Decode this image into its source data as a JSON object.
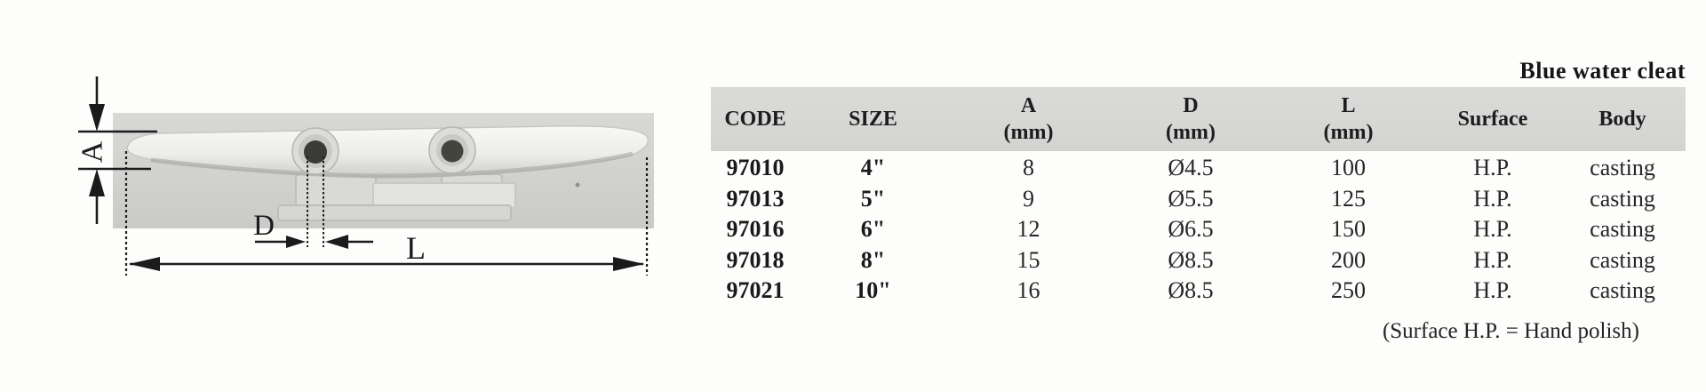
{
  "title": "Blue water cleat",
  "figure": {
    "description": "photo of stainless horn cleat with dimension arrows",
    "dim_labels": {
      "a": "A",
      "d": "D",
      "l": "L"
    }
  },
  "table": {
    "columns": [
      {
        "key": "code",
        "label": "CODE",
        "sub": ""
      },
      {
        "key": "size",
        "label": "SIZE",
        "sub": ""
      },
      {
        "key": "a",
        "label": "A",
        "sub": "(mm)"
      },
      {
        "key": "d",
        "label": "D",
        "sub": "(mm)"
      },
      {
        "key": "l",
        "label": "L",
        "sub": "(mm)"
      },
      {
        "key": "surface",
        "label": "Surface",
        "sub": ""
      },
      {
        "key": "body",
        "label": "Body",
        "sub": ""
      }
    ],
    "rows": [
      {
        "code": "97010",
        "size": "4\"",
        "a": "8",
        "d": "Ø4.5",
        "l": "100",
        "surface": "H.P.",
        "body": "casting"
      },
      {
        "code": "97013",
        "size": "5\"",
        "a": "9",
        "d": "Ø5.5",
        "l": "125",
        "surface": "H.P.",
        "body": "casting"
      },
      {
        "code": "97016",
        "size": "6\"",
        "a": "12",
        "d": "Ø6.5",
        "l": "150",
        "surface": "H.P.",
        "body": "casting"
      },
      {
        "code": "97018",
        "size": "8\"",
        "a": "15",
        "d": "Ø8.5",
        "l": "200",
        "surface": "H.P.",
        "body": "casting"
      },
      {
        "code": "97021",
        "size": "10\"",
        "a": "16",
        "d": "Ø8.5",
        "l": "250",
        "surface": "H.P.",
        "body": "casting"
      }
    ],
    "footnote": "(Surface H.P. = Hand polish)"
  },
  "colors": {
    "header_band": "#d7d7d5",
    "photo_background": "#d2d2d0",
    "annotation_ink": "#1b1b1b",
    "text": "#222222"
  }
}
